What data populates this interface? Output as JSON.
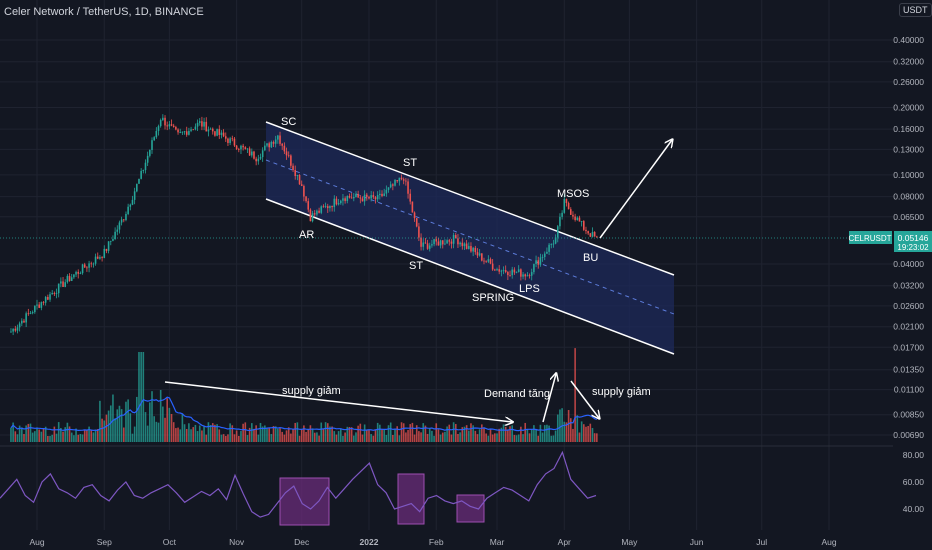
{
  "header": {
    "title": "Celer Network / TetherUS, 1D, BINANCE",
    "currency": "USDT"
  },
  "colors": {
    "background": "#131722",
    "up": "#26a69a",
    "down": "#ef5350",
    "channel": "#1e2a5a",
    "rsi": "#7e57c2",
    "rsi_box": "#6a2c7a"
  },
  "chart_data": [
    {
      "type": "candlestick",
      "title": "Celer Network / TetherUS, 1D, BINANCE",
      "y_scale": "log",
      "ylim": [
        0.0065,
        0.45
      ],
      "y_ticks": [
        "0.40000",
        "0.32000",
        "0.26000",
        "0.20000",
        "0.16000",
        "0.13000",
        "0.10000",
        "0.08000",
        "0.06500",
        "0.05146",
        "0.04000",
        "0.03200",
        "0.02600",
        "0.02100",
        "0.01700",
        "0.01350",
        "0.01100",
        "0.00850",
        "0.00690"
      ],
      "x_ticks": [
        "Aug",
        "Sep",
        "Oct",
        "Nov",
        "Dec",
        "2022",
        "Feb",
        "Mar",
        "Apr",
        "May",
        "Jun",
        "Jul",
        "Aug"
      ],
      "x_range": [
        "2021-07-20",
        "2022-08-31"
      ],
      "approx_close_path": [
        {
          "date": "2021-07-20",
          "close": 0.02
        },
        {
          "date": "2021-08-01",
          "close": 0.026
        },
        {
          "date": "2021-08-15",
          "close": 0.034
        },
        {
          "date": "2021-09-01",
          "close": 0.045
        },
        {
          "date": "2021-09-10",
          "close": 0.065
        },
        {
          "date": "2021-09-18",
          "close": 0.1
        },
        {
          "date": "2021-09-27",
          "close": 0.18
        },
        {
          "date": "2021-10-05",
          "close": 0.15
        },
        {
          "date": "2021-10-15",
          "close": 0.17
        },
        {
          "date": "2021-10-30",
          "close": 0.14
        },
        {
          "date": "2021-11-10",
          "close": 0.12
        },
        {
          "date": "2021-11-20",
          "close": 0.15
        },
        {
          "date": "2021-12-01",
          "close": 0.09
        },
        {
          "date": "2021-12-05",
          "close": 0.065
        },
        {
          "date": "2021-12-20",
          "close": 0.08
        },
        {
          "date": "2022-01-05",
          "close": 0.078
        },
        {
          "date": "2022-01-17",
          "close": 0.098
        },
        {
          "date": "2022-01-25",
          "close": 0.048
        },
        {
          "date": "2022-02-10",
          "close": 0.052
        },
        {
          "date": "2022-03-01",
          "close": 0.038
        },
        {
          "date": "2022-03-15",
          "close": 0.036
        },
        {
          "date": "2022-03-28",
          "close": 0.052
        },
        {
          "date": "2022-04-01",
          "close": 0.075
        },
        {
          "date": "2022-04-10",
          "close": 0.058
        },
        {
          "date": "2022-04-16",
          "close": 0.05146
        }
      ],
      "last_price": {
        "symbol": "CELRUSDT",
        "price": "0.05146",
        "countdown": "19:23:02"
      },
      "annotations": [
        "SC",
        "ST",
        "AR",
        "ST",
        "SPRING",
        "LPS",
        "MSOS",
        "BU",
        "supply giảm",
        "Demand tăng",
        "supply giảm"
      ]
    },
    {
      "type": "line",
      "title": "",
      "y_ticks": [
        "80.00",
        "60.00",
        "40.00"
      ],
      "ylim": [
        32,
        86
      ],
      "approx_series": [
        48,
        55,
        62,
        50,
        45,
        60,
        66,
        55,
        52,
        48,
        56,
        58,
        50,
        46,
        54,
        60,
        50,
        48,
        52,
        55,
        58,
        52,
        45,
        49,
        53,
        50,
        55,
        47,
        65,
        51,
        38,
        34,
        36,
        44,
        52,
        57,
        44,
        40,
        46,
        56,
        48,
        55,
        62,
        68,
        74,
        58,
        52,
        40,
        42,
        44,
        38,
        48,
        50,
        46,
        44,
        46,
        42,
        40,
        48,
        52,
        56,
        54,
        50,
        46,
        58,
        66,
        70,
        82,
        62,
        55,
        48,
        50
      ]
    }
  ]
}
